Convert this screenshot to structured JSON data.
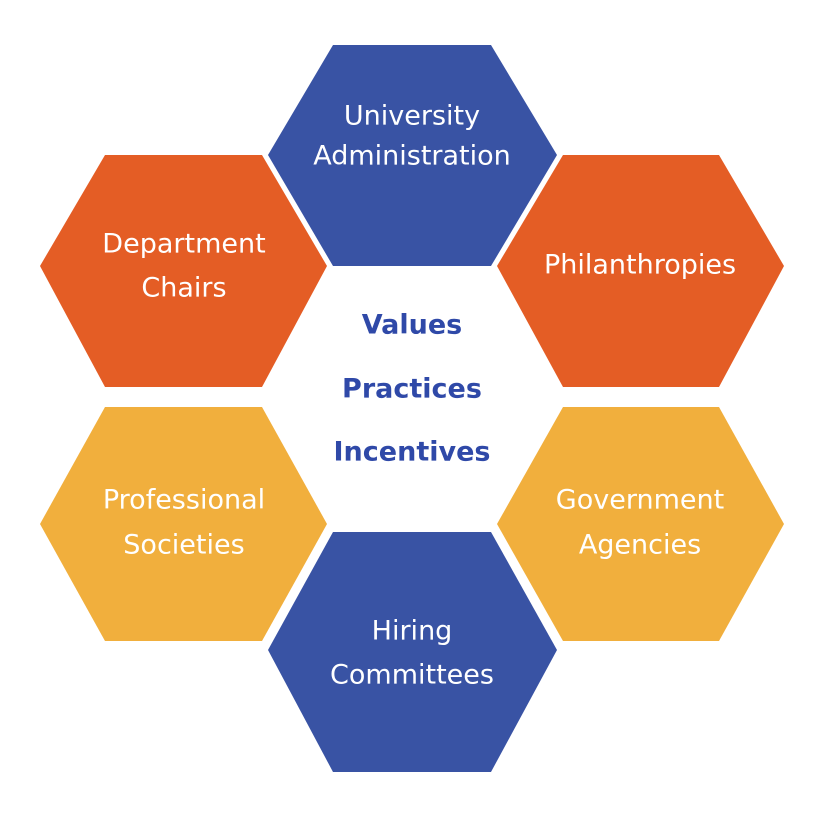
{
  "colors": {
    "blue": "#3953A4",
    "orange": "#E45D25",
    "yellow": "#F1AF3D",
    "center_text": "#2F49A8"
  },
  "hexagons": [
    {
      "id": "university-administration",
      "line1": "University",
      "line2": "Administration",
      "color": "blue"
    },
    {
      "id": "department-chairs",
      "line1": "Department",
      "line2": "Chairs",
      "color": "orange"
    },
    {
      "id": "philanthropies",
      "line1": "Philanthropies",
      "line2": "",
      "color": "orange"
    },
    {
      "id": "professional-societies",
      "line1": "Professional",
      "line2": "Societies",
      "color": "yellow"
    },
    {
      "id": "government-agencies",
      "line1": "Government",
      "line2": "Agencies",
      "color": "yellow"
    },
    {
      "id": "hiring-committees",
      "line1": "Hiring",
      "line2": "Committees",
      "color": "blue"
    }
  ],
  "center": {
    "values": "Values",
    "practices": "Practices",
    "incentives": "Incentives"
  }
}
